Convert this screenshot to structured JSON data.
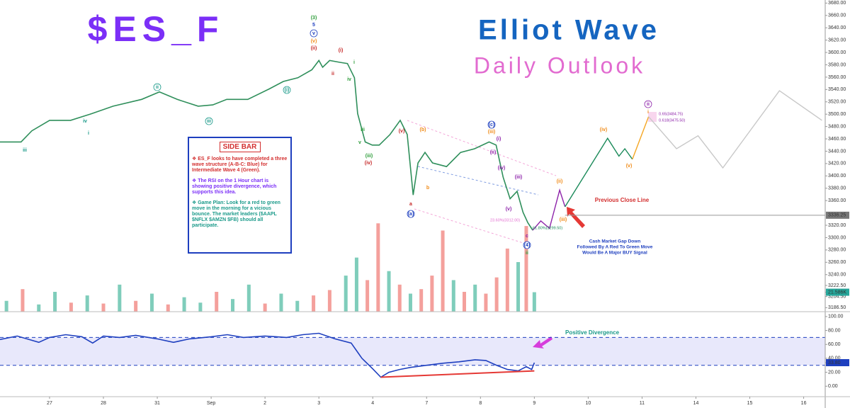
{
  "chart_data": [
    {
      "type": "line",
      "title": "$ES_F",
      "subtitle": "Elliot Wave",
      "annotations": {
        "tagline": "Daily Outlook",
        "waves": [
          "(3)",
          "5",
          "v",
          "(v)",
          "(ii)",
          "(i)",
          "ii",
          "i",
          "iv",
          "iii",
          "v",
          "(iii)",
          "(iv)",
          "(v)",
          "a",
          "(a)",
          "(b)",
          "b",
          "(c)",
          "(iii)",
          "(i)",
          "(ii)",
          "(iv)",
          "(iii)",
          "(v)",
          "c",
          "(4)",
          "ii",
          "iii",
          "iv",
          "i",
          "ii",
          "iii",
          "(i)",
          "(ii)",
          "(iii)",
          "(iv)",
          "(v)",
          "i",
          "ii"
        ],
        "fib_labels": [
          "0.65(3484.75)",
          "0.618(3475.50)",
          "23.60%(3312.00)",
          "61.80%(3299.50)"
        ],
        "previous_close": "Previous Close Line",
        "note": [
          "Cash Market Gap Down",
          "Followed By A Red To Green Move",
          "Would Be A Major BUY Signal"
        ],
        "sidebar_heading": "SIDE BAR",
        "sidebar_points": [
          "❖ ES_F looks to have completed a three wave structure (A-B-C: Blue) for Intermediate Wave 4 (Green).",
          "❖ The RSI on the 1 Hour chart is showing positive divergence, which supports this idea.",
          "❖ Game Plan: Look for a red to green move in the morning for a vicious bounce. The market leaders ($AAPL $NFLX $AMZN $FB) should all participate."
        ]
      },
      "xlim": [
        -0.92,
        14.4
      ],
      "ylim": [
        3180,
        3685
      ],
      "yticks": [
        {
          "value": 3680,
          "label": "3680.00"
        },
        {
          "value": 3660,
          "label": "3660.00"
        },
        {
          "value": 3640,
          "label": "3640.00"
        },
        {
          "value": 3620,
          "label": "3620.00"
        },
        {
          "value": 3600,
          "label": "3600.00"
        },
        {
          "value": 3580,
          "label": "3580.00"
        },
        {
          "value": 3560,
          "label": "3560.00"
        },
        {
          "value": 3540,
          "label": "3540.00"
        },
        {
          "value": 3520,
          "label": "3520.00"
        },
        {
          "value": 3500,
          "label": "3500.00"
        },
        {
          "value": 3480,
          "label": "3480.00"
        },
        {
          "value": 3460,
          "label": "3460.00"
        },
        {
          "value": 3440,
          "label": "3440.00"
        },
        {
          "value": 3420,
          "label": "3420.00"
        },
        {
          "value": 3400,
          "label": "3400.00"
        },
        {
          "value": 3380,
          "label": "3380.00"
        },
        {
          "value": 3360,
          "label": "3360.00"
        },
        {
          "value": 3320,
          "label": "3320.00"
        },
        {
          "value": 3300,
          "label": "3300.00"
        },
        {
          "value": 3280,
          "label": "3280.00"
        },
        {
          "value": 3260,
          "label": "3260.00"
        },
        {
          "value": 3240,
          "label": "3240.00"
        },
        {
          "value": 3222.5,
          "label": "3222.50"
        },
        {
          "value": 3204.5,
          "label": "3204.50"
        },
        {
          "value": 3186.5,
          "label": "3186.50"
        }
      ],
      "reference_line": 3336.25,
      "series": [
        {
          "color": "#2f8f5b",
          "x": [
            -0.92,
            -0.53,
            -0.33,
            0,
            0.39,
            0.79,
            1.18,
            1.71,
            2.04,
            2.37,
            2.76,
            3.03,
            3.29,
            3.68,
            4.08,
            4.34,
            4.61,
            4.87,
            5.0,
            5.07,
            5.2,
            5.39,
            5.53,
            5.66,
            5.72,
            5.86,
            5.99,
            6.12,
            6.32,
            6.51,
            6.64,
            6.75,
            6.84,
            6.97,
            7.11,
            7.37,
            7.63,
            7.89,
            8.16,
            8.29,
            8.42,
            8.55,
            8.68,
            8.79,
            8.88,
            8.97
          ],
          "values": [
            3455,
            3455,
            3473,
            3490,
            3490,
            3501,
            3513,
            3524,
            3536,
            3524,
            3513,
            3515,
            3524,
            3524,
            3541,
            3553,
            3559,
            3572,
            3587,
            3576,
            3587,
            3584,
            3582,
            3559,
            3501,
            3455,
            3450,
            3450,
            3467,
            3490,
            3467,
            3369,
            3421,
            3438,
            3421,
            3415,
            3438,
            3444,
            3455,
            3450,
            3398,
            3363,
            3375,
            3341,
            3324,
            3312
          ]
        },
        {
          "color": "#8e24aa",
          "x": [
            8.97,
            9.12,
            9.28,
            9.47,
            9.57
          ],
          "values": [
            3312,
            3327,
            3315,
            3377,
            3350
          ]
        },
        {
          "color": "#1b8a5a",
          "x": [
            9.57,
            10.36,
            10.57,
            10.68,
            10.82
          ],
          "values": [
            3350,
            3461,
            3432,
            3444,
            3427
          ]
        },
        {
          "color": "#f5a623",
          "x": [
            10.82,
            11.12
          ],
          "values": [
            3427,
            3496
          ]
        },
        {
          "color": "#c8c8c8",
          "x": [
            11.12,
            11.64,
            12.04,
            12.5,
            13.55,
            14.34
          ],
          "values": [
            3496,
            3444,
            3465,
            3413,
            3538,
            3490
          ]
        }
      ]
    },
    {
      "type": "bar",
      "xlim": [
        -0.92,
        14.4
      ],
      "ylim": [
        0,
        110
      ],
      "yticks": [
        {
          "value": 21.586,
          "label": "21.586K"
        }
      ],
      "x": [
        -0.8,
        -0.5,
        -0.2,
        0.1,
        0.4,
        0.7,
        1.0,
        1.3,
        1.6,
        1.9,
        2.2,
        2.5,
        2.8,
        3.1,
        3.4,
        3.7,
        4.0,
        4.3,
        4.6,
        4.9,
        5.2,
        5.5,
        5.7,
        5.9,
        6.1,
        6.3,
        6.5,
        6.7,
        6.9,
        7.1,
        7.3,
        7.5,
        7.7,
        7.9,
        8.1,
        8.3,
        8.5,
        8.7,
        8.85,
        9.0
      ],
      "values": [
        12,
        25,
        8,
        22,
        10,
        18,
        9,
        30,
        12,
        20,
        8,
        16,
        10,
        22,
        14,
        30,
        9,
        20,
        12,
        18,
        24,
        40,
        60,
        35,
        98,
        45,
        30,
        20,
        25,
        40,
        90,
        35,
        22,
        30,
        20,
        38,
        70,
        55,
        95,
        21.586
      ],
      "colors": [
        "#7fcdbb",
        "#f4a09c",
        "#7fcdbb",
        "#7fcdbb",
        "#f4a09c",
        "#7fcdbb",
        "#f4a09c",
        "#7fcdbb",
        "#f4a09c",
        "#7fcdbb",
        "#f4a09c",
        "#7fcdbb",
        "#7fcdbb",
        "#f4a09c",
        "#7fcdbb",
        "#7fcdbb",
        "#f4a09c",
        "#7fcdbb",
        "#7fcdbb",
        "#f4a09c",
        "#f4a09c",
        "#7fcdbb",
        "#7fcdbb",
        "#f4a09c",
        "#f4a09c",
        "#7fcdbb",
        "#f4a09c",
        "#7fcdbb",
        "#f4a09c",
        "#f4a09c",
        "#f4a09c",
        "#7fcdbb",
        "#f4a09c",
        "#7fcdbb",
        "#f4a09c",
        "#f4a09c",
        "#f4a09c",
        "#7fcdbb",
        "#f4a09c",
        "#7fcdbb"
      ]
    },
    {
      "type": "line",
      "annotations": {
        "divergence": "Positive Divergence"
      },
      "xlim": [
        -0.92,
        14.4
      ],
      "ylim": [
        -15,
        107
      ],
      "xticks": [
        {
          "value": 0,
          "label": "27"
        },
        {
          "value": 1,
          "label": "28"
        },
        {
          "value": 2,
          "label": "31"
        },
        {
          "value": 3,
          "label": "Sep"
        },
        {
          "value": 4,
          "label": "2"
        },
        {
          "value": 5,
          "label": "3"
        },
        {
          "value": 6,
          "label": "4"
        },
        {
          "value": 7,
          "label": "7"
        },
        {
          "value": 8,
          "label": "8"
        },
        {
          "value": 9,
          "label": "9"
        },
        {
          "value": 10,
          "label": "10"
        },
        {
          "value": 11,
          "label": "11"
        },
        {
          "value": 12,
          "label": "14"
        },
        {
          "value": 13,
          "label": "15"
        },
        {
          "value": 14,
          "label": "16"
        }
      ],
      "yticks": [
        {
          "value": 100,
          "label": "100.00"
        },
        {
          "value": 80,
          "label": "80.00"
        },
        {
          "value": 60,
          "label": "60.00"
        },
        {
          "value": 40,
          "label": "40.00"
        },
        {
          "value": 33.8,
          "label": "33.80"
        },
        {
          "value": 20,
          "label": "20.00"
        },
        {
          "value": 0,
          "label": "0.00"
        }
      ],
      "levels": [
        30,
        70
      ],
      "series": [
        {
          "color": "#1e3fbf",
          "x": [
            -0.92,
            -0.6,
            -0.2,
            0,
            0.3,
            0.6,
            0.8,
            1.0,
            1.3,
            1.6,
            2.0,
            2.3,
            2.6,
            3.0,
            3.3,
            3.6,
            4.0,
            4.4,
            4.7,
            5.0,
            5.3,
            5.6,
            5.8,
            6.0,
            6.15,
            6.3,
            6.5,
            6.7,
            7.0,
            7.3,
            7.6,
            7.9,
            8.1,
            8.3,
            8.5,
            8.7,
            8.85,
            8.95,
            9.0
          ],
          "values": [
            67,
            72,
            63,
            70,
            74,
            71,
            62,
            72,
            70,
            73,
            68,
            63,
            68,
            71,
            74,
            70,
            72,
            70,
            74,
            76,
            68,
            62,
            40,
            25,
            13,
            20,
            24,
            27,
            30,
            33,
            35,
            38,
            37,
            30,
            24,
            22,
            28,
            24,
            33.8
          ]
        }
      ],
      "trendline": {
        "color": "#e53935",
        "x": [
          6.15,
          9.0
        ],
        "values": [
          13,
          22
        ]
      }
    }
  ]
}
